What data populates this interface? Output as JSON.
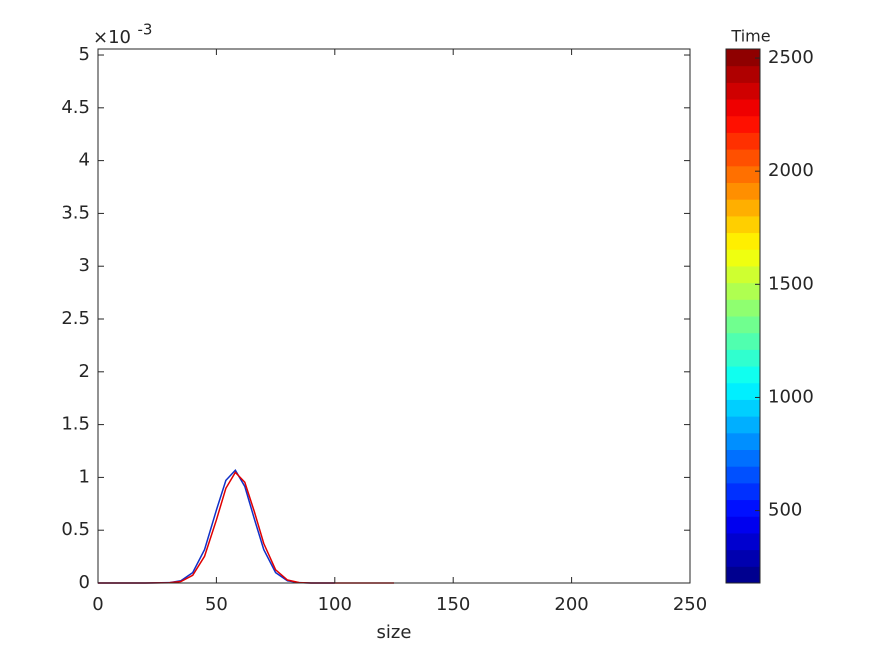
{
  "chart_data": {
    "type": "line",
    "xlabel": "size",
    "y_exponent_base": "×10",
    "y_exponent": "-3",
    "xlim": [
      0,
      250
    ],
    "xticks": [
      0,
      50,
      100,
      150,
      200,
      250
    ],
    "ylim": [
      0,
      5.057
    ],
    "yticks": [
      0,
      0.5,
      1,
      1.5,
      2,
      2.5,
      3,
      3.5,
      4,
      4.5,
      5
    ],
    "series": [
      {
        "color": "#1030c8",
        "x": [
          0,
          10,
          20,
          30,
          35,
          40,
          45,
          50,
          54,
          58,
          62,
          66,
          70,
          75,
          80,
          85,
          90,
          100
        ],
        "values": [
          0,
          0,
          0,
          0.003,
          0.021,
          0.098,
          0.316,
          0.691,
          0.972,
          1.068,
          0.914,
          0.609,
          0.316,
          0.098,
          0.021,
          0.003,
          0,
          0
        ]
      },
      {
        "color": "#e00000",
        "x": [
          0,
          10,
          20,
          30,
          35,
          40,
          45,
          50,
          54,
          58,
          62,
          66,
          70,
          75,
          80,
          85,
          90,
          100,
          125
        ],
        "values": [
          0,
          0,
          0,
          0.002,
          0.014,
          0.073,
          0.253,
          0.597,
          0.897,
          1.048,
          0.954,
          0.677,
          0.374,
          0.125,
          0.028,
          0.004,
          0,
          0,
          0
        ]
      }
    ],
    "colorbar": {
      "label": "Time",
      "colormap": "jet",
      "clim": [
        180,
        2540
      ],
      "ticks": [
        500,
        1000,
        1500,
        2000,
        2500
      ]
    }
  }
}
